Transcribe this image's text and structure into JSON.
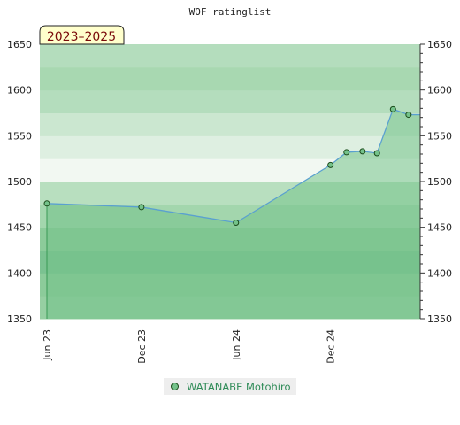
{
  "chart_data": {
    "type": "line",
    "title": "WOF ratinglist",
    "period_label": "2023–2025",
    "ylim": [
      1350,
      1650
    ],
    "y_ticks": [
      1350,
      1400,
      1450,
      1500,
      1550,
      1600,
      1650
    ],
    "x_ticks": [
      {
        "label": "Jun 23",
        "date": "2023-06-01"
      },
      {
        "label": "Dec 23",
        "date": "2023-12-01"
      },
      {
        "label": "Jun 24",
        "date": "2024-06-01"
      },
      {
        "label": "Dec 24",
        "date": "2024-12-01"
      }
    ],
    "xlim": [
      "2023-06-01",
      "2025-05-15"
    ],
    "series": [
      {
        "name": "WATANABE Motohiro",
        "color": "#5aa0d0",
        "fill": "#74c28a",
        "points": [
          {
            "x": "2023-06-01",
            "y": 1476
          },
          {
            "x": "2023-12-01",
            "y": 1472
          },
          {
            "x": "2024-06-01",
            "y": 1455
          },
          {
            "x": "2024-12-01",
            "y": 1518
          },
          {
            "x": "2025-01-01",
            "y": 1532
          },
          {
            "x": "2025-02-01",
            "y": 1533
          },
          {
            "x": "2025-03-01",
            "y": 1531
          },
          {
            "x": "2025-04-01",
            "y": 1579
          },
          {
            "x": "2025-05-01",
            "y": 1573
          }
        ]
      }
    ],
    "legend_position": "bottom"
  }
}
